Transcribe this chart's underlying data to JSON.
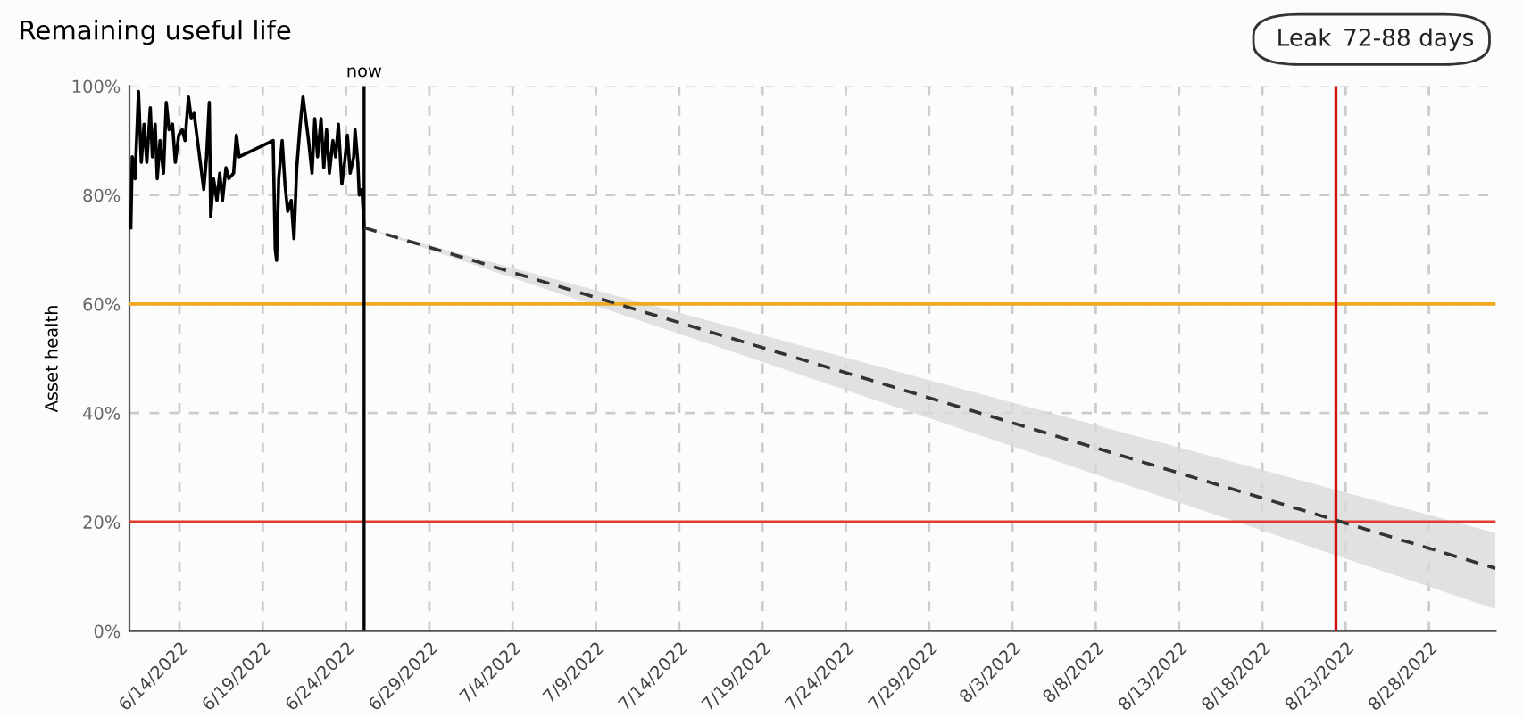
{
  "chart_data": {
    "type": "line",
    "title": "Remaining useful life",
    "ylabel": "Asset health",
    "annotations": [
      "Leak",
      "72-88 days"
    ],
    "series": [
      {
        "color": "#000000",
        "line_style": "solid",
        "x": [
          "2022-06-11T02:00",
          "2022-06-11T04:00",
          "2022-06-11T08:00",
          "2022-06-11T13:00",
          "2022-06-11T17:00",
          "2022-06-11T21:00",
          "2022-06-12T01:00",
          "2022-06-12T06:00",
          "2022-06-12T09:00",
          "2022-06-12T13:00",
          "2022-06-12T16:00",
          "2022-06-12T20:00",
          "2022-06-13T01:00",
          "2022-06-13T05:00",
          "2022-06-13T09:00",
          "2022-06-13T14:00",
          "2022-06-13T18:00",
          "2022-06-13T23:00",
          "2022-06-14T04:00",
          "2022-06-14T08:00",
          "2022-06-14T13:00",
          "2022-06-14T17:00",
          "2022-06-14T21:00",
          "2022-06-15T01:00",
          "2022-06-15T07:00",
          "2022-06-15T11:00",
          "2022-06-15T15:00",
          "2022-06-15T19:00",
          "2022-06-15T21:00",
          "2022-06-16T01:00",
          "2022-06-16T06:00",
          "2022-06-16T10:00",
          "2022-06-16T14:00",
          "2022-06-16T19:00",
          "2022-06-16T23:00",
          "2022-06-17T06:00",
          "2022-06-17T10:00",
          "2022-06-17T14:00",
          "2022-06-19T15:00",
          "2022-06-19T18:00",
          "2022-06-19T20:00",
          "2022-06-19T23:00",
          "2022-06-20T04:00",
          "2022-06-20T08:00",
          "2022-06-20T12:00",
          "2022-06-20T17:00",
          "2022-06-20T21:00",
          "2022-06-21T01:00",
          "2022-06-21T06:00",
          "2022-06-21T10:00",
          "2022-06-21T14:00",
          "2022-06-21T18:00",
          "2022-06-21T23:00",
          "2022-06-22T03:00",
          "2022-06-22T07:00",
          "2022-06-22T12:00",
          "2022-06-22T16:00",
          "2022-06-22T20:00",
          "2022-06-23T00:00",
          "2022-06-23T05:00",
          "2022-06-23T09:00",
          "2022-06-23T13:00",
          "2022-06-23T18:00",
          "2022-06-23T22:00",
          "2022-06-24T02:00",
          "2022-06-24T06:00",
          "2022-06-24T11:00",
          "2022-06-24T13:00",
          "2022-06-24T17:00",
          "2022-06-24T19:00",
          "2022-06-24T23:00",
          "2022-06-25T02:00"
        ],
        "values": [
          74,
          87,
          83,
          99,
          86,
          93,
          86,
          96,
          87,
          93,
          83,
          90,
          84,
          97,
          92,
          93,
          86,
          91,
          92,
          90,
          98,
          94,
          95,
          91,
          85,
          81,
          87,
          97,
          76,
          83,
          79,
          84,
          79,
          85,
          83,
          84,
          91,
          87,
          90,
          70,
          68,
          83,
          90,
          82,
          77,
          79,
          72,
          85,
          93,
          98,
          94,
          90,
          84,
          94,
          87,
          94,
          85,
          92,
          84,
          90,
          87,
          93,
          82,
          86,
          91,
          84,
          87,
          92,
          86,
          80,
          81,
          74
        ]
      },
      {
        "color": "#333333",
        "line_style": "dashed",
        "x": [
          "2022-06-25T02:00",
          "2022-09-01"
        ],
        "values": [
          74,
          11.5
        ],
        "lower": [
          74,
          4
        ],
        "upper": [
          74,
          18
        ]
      }
    ],
    "xlim": [
      "2022-06-11",
      "2022-09-01"
    ],
    "xticks": [
      {
        "value": "2022-06-14",
        "label": "6/14/2022"
      },
      {
        "value": "2022-06-19",
        "label": "6/19/2022"
      },
      {
        "value": "2022-06-24",
        "label": "6/24/2022"
      },
      {
        "value": "2022-06-29",
        "label": "6/29/2022"
      },
      {
        "value": "2022-07-04",
        "label": "7/4/2022"
      },
      {
        "value": "2022-07-09",
        "label": "7/9/2022"
      },
      {
        "value": "2022-07-14",
        "label": "7/14/2022"
      },
      {
        "value": "2022-07-19",
        "label": "7/19/2022"
      },
      {
        "value": "2022-07-24",
        "label": "7/24/2022"
      },
      {
        "value": "2022-07-29",
        "label": "7/29/2022"
      },
      {
        "value": "2022-08-03",
        "label": "8/3/2022"
      },
      {
        "value": "2022-08-08",
        "label": "8/8/2022"
      },
      {
        "value": "2022-08-13",
        "label": "8/13/2022"
      },
      {
        "value": "2022-08-18",
        "label": "8/18/2022"
      },
      {
        "value": "2022-08-23",
        "label": "8/23/2022"
      },
      {
        "value": "2022-08-28",
        "label": "8/28/2022"
      }
    ],
    "ylim": [
      0,
      100
    ],
    "yticks": [
      {
        "value": 0,
        "label": "0%"
      },
      {
        "value": 20,
        "label": "20%"
      },
      {
        "value": 40,
        "label": "40%"
      },
      {
        "value": 60,
        "label": "60%"
      },
      {
        "value": 80,
        "label": "80%"
      },
      {
        "value": 100,
        "label": "100%"
      }
    ],
    "ref_lines": [
      {
        "axis": "y",
        "value": 60,
        "label": null,
        "color": "#f0a81c"
      },
      {
        "axis": "y",
        "value": 20,
        "label": null,
        "color": "#e03c31"
      },
      {
        "axis": "x",
        "value": "2022-06-25T02:00",
        "label": "now",
        "color": "#000000"
      },
      {
        "axis": "x",
        "value": "2022-08-22T10:00",
        "label": null,
        "color": "#d01010"
      }
    ],
    "grid": true,
    "legend": false
  }
}
